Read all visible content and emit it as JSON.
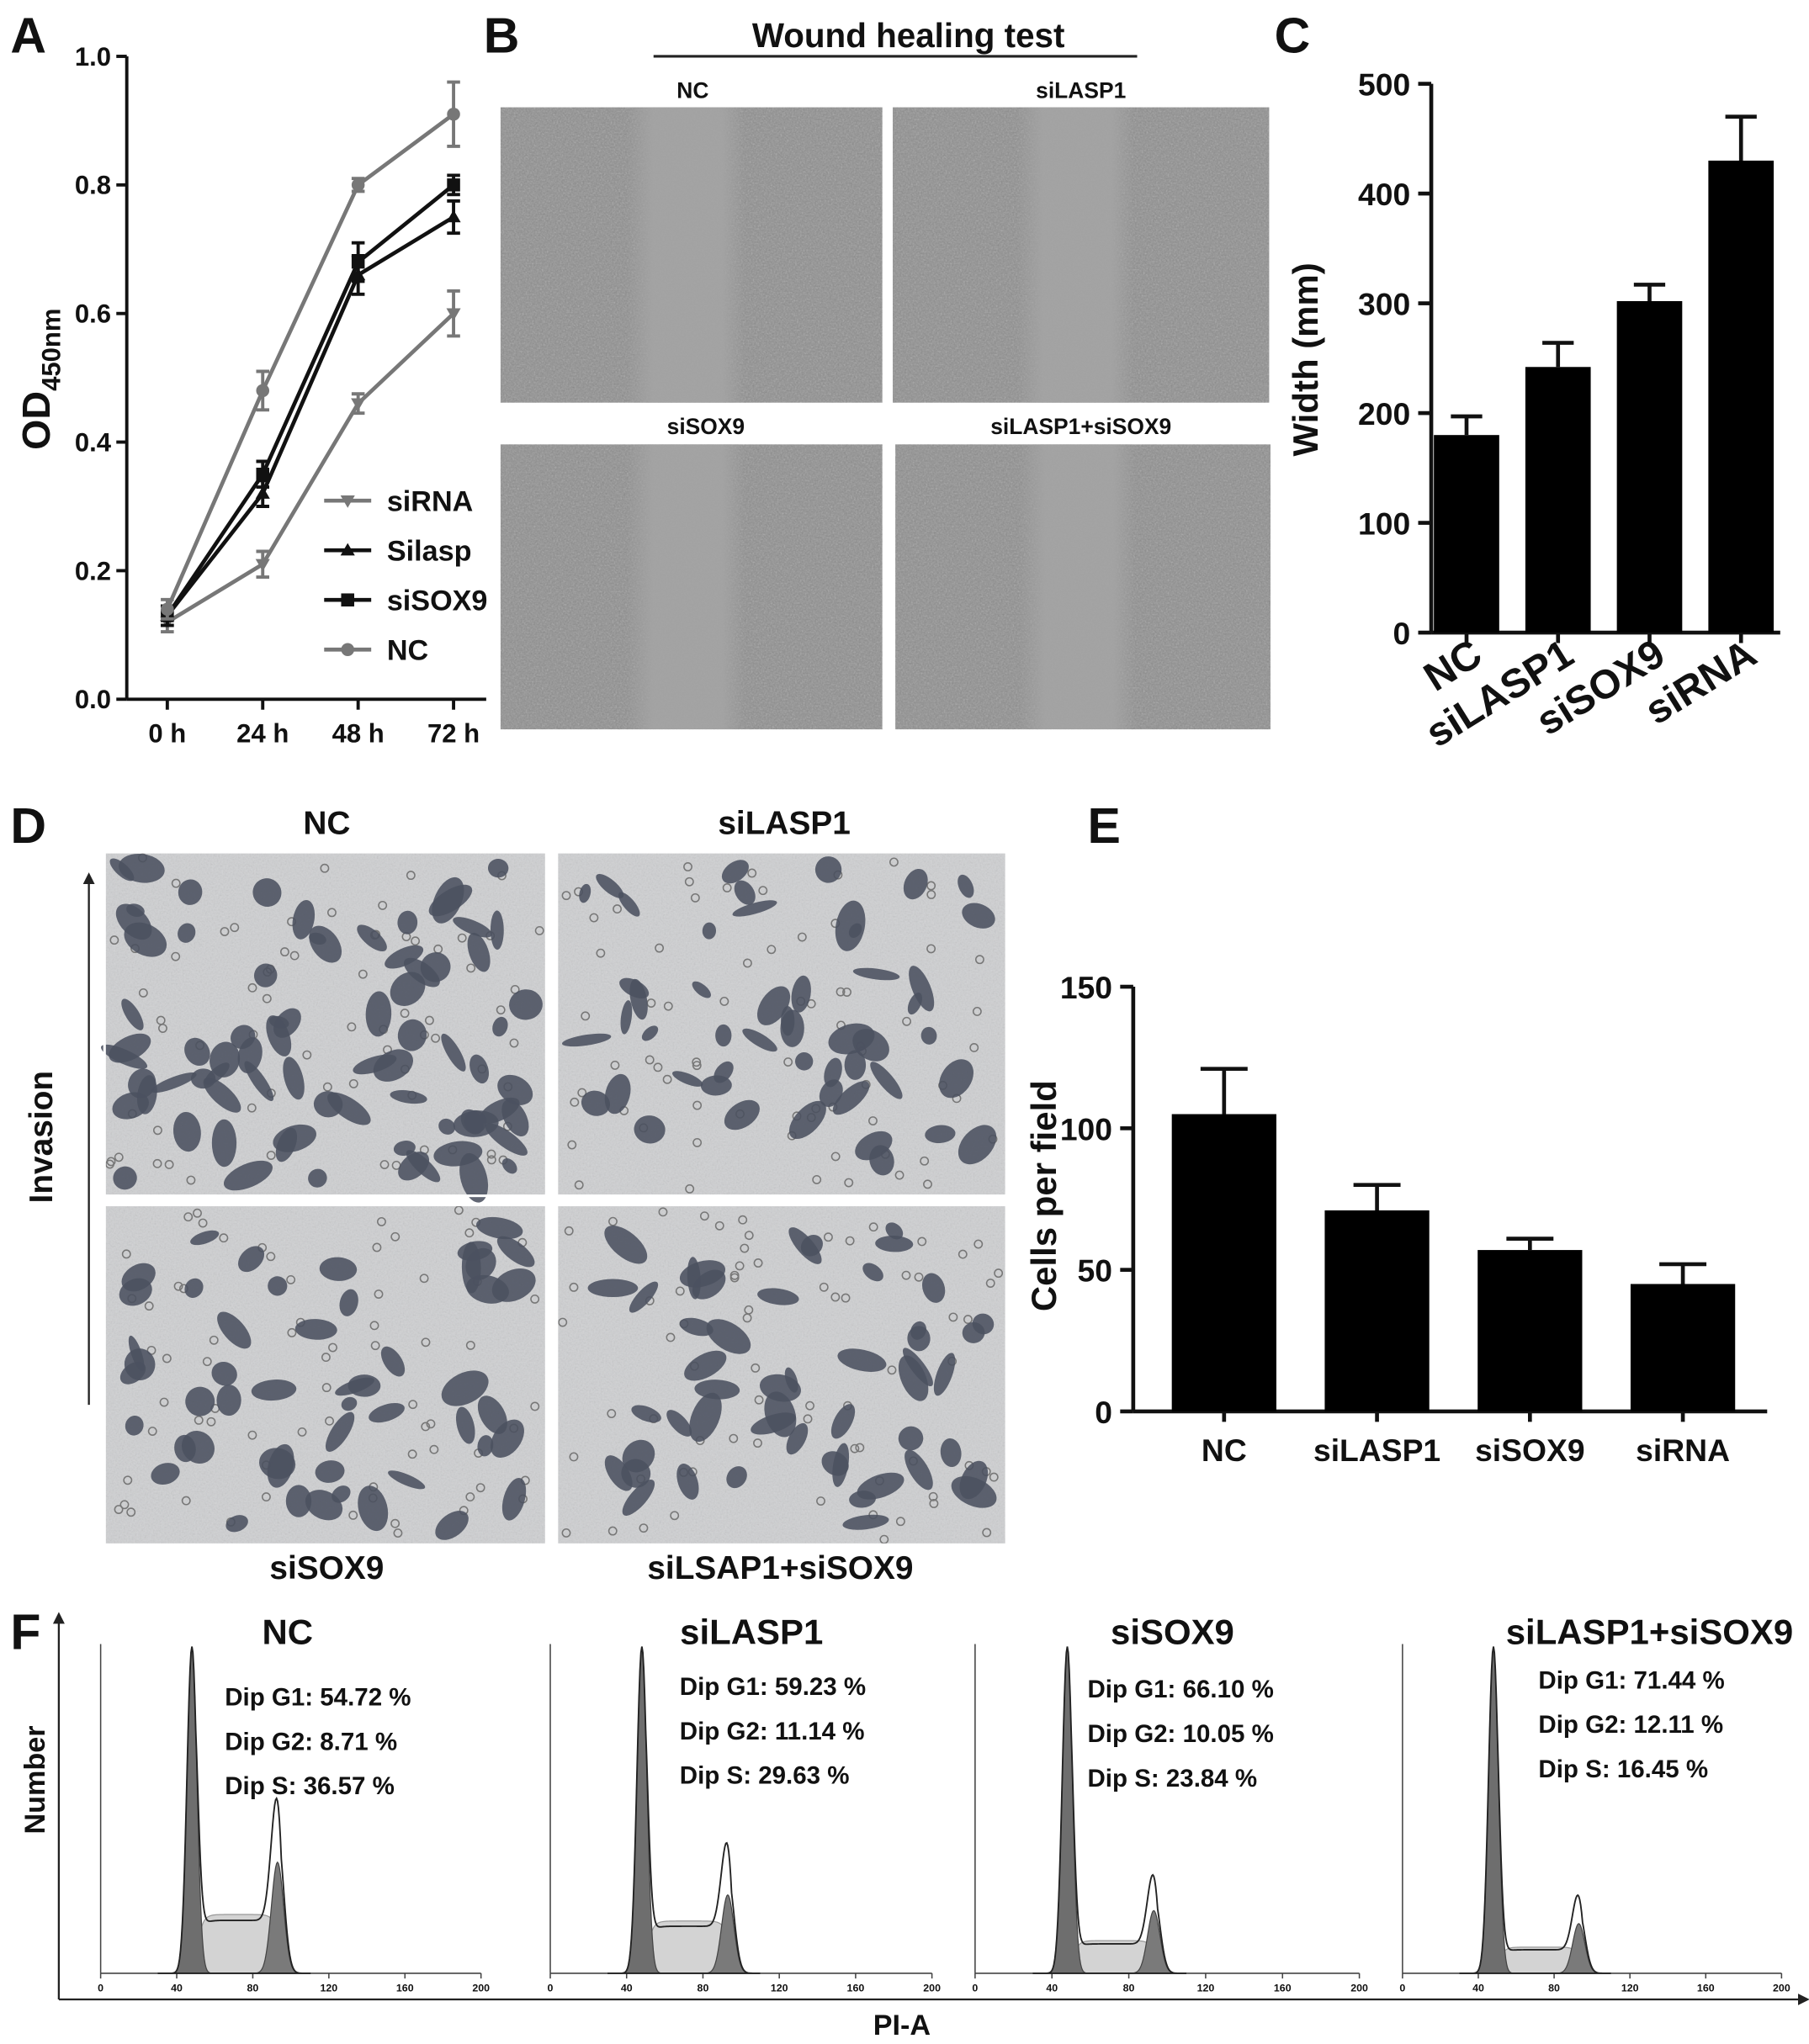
{
  "panel_labels": [
    "A",
    "B",
    "C",
    "D",
    "E",
    "F"
  ],
  "chart_data": [
    {
      "type": "line",
      "y_label": "OD",
      "y_label_sub": "450nm",
      "categories": [
        "0 h",
        "24 h",
        "48 h",
        "72 h"
      ],
      "ylim": [
        0,
        1
      ],
      "yticks": [
        {
          "value": 0,
          "label": "0.0"
        },
        0.2,
        0.4,
        0.6,
        0.8,
        {
          "value": 1,
          "label": "1.0"
        }
      ],
      "series": [
        {
          "name": "siRNA",
          "color": "#777777",
          "marker": "triangle-down",
          "values": [
            0.12,
            0.21,
            0.46,
            0.6
          ],
          "errors": [
            0.015,
            0.02,
            0.015,
            0.035
          ]
        },
        {
          "name": "Silasp",
          "color": "#111111",
          "marker": "triangle-up",
          "values": [
            0.13,
            0.32,
            0.66,
            0.75
          ],
          "errors": [
            0.015,
            0.02,
            0.03,
            0.025
          ]
        },
        {
          "name": "siSOX9",
          "color": "#111111",
          "marker": "square",
          "values": [
            0.13,
            0.35,
            0.68,
            0.8
          ],
          "errors": [
            0.015,
            0.02,
            0.03,
            0.015
          ]
        },
        {
          "name": "NC",
          "color": "#777777",
          "marker": "circle",
          "values": [
            0.14,
            0.48,
            0.8,
            0.91
          ],
          "errors": [
            0.015,
            0.03,
            0.01,
            0.05
          ]
        }
      ]
    },
    {
      "type": "bar",
      "y_label": "Width (mm)",
      "color": "#000000",
      "categories": [
        "NC",
        "siLASP1",
        "siSOX9",
        "siRNA"
      ],
      "values": [
        180,
        242,
        302,
        430
      ],
      "errors": [
        17,
        22,
        15,
        40
      ],
      "ylim": [
        0,
        500
      ],
      "yticks": [
        0,
        100,
        200,
        300,
        400,
        500
      ]
    },
    {
      "type": "bar",
      "y_label": "Cells per field",
      "color": "#000000",
      "categories": [
        "NC",
        "siLASP1",
        "siSOX9",
        "siRNA"
      ],
      "values": [
        105,
        71,
        57,
        45
      ],
      "errors": [
        16,
        9,
        4,
        7
      ],
      "ylim": [
        0,
        150
      ],
      "yticks": [
        0,
        50,
        100,
        150
      ]
    }
  ],
  "wound_healing": {
    "title": "Wound healing test",
    "labels": [
      "NC",
      "siLASP1",
      "siSOX9",
      "siLASP1+siSOX9"
    ]
  },
  "invasion": {
    "axis_label": "Invasion",
    "labels": [
      "NC",
      "siLASP1",
      "siSOX9",
      "siLSAP1+siSOX9"
    ]
  },
  "cell_cycle": {
    "x_label": "PI-A",
    "y_label": "Number",
    "xlim": [
      0,
      200
    ],
    "xticks": [
      0,
      40,
      80,
      120,
      160,
      200
    ],
    "panels": [
      {
        "title": "NC",
        "stats": [
          "Dip G1: 54.72 %",
          "Dip G2: 8.71 %",
          "Dip S: 36.57 %"
        ]
      },
      {
        "title": "siLASP1",
        "stats": [
          "Dip G1: 59.23 %",
          "Dip G2: 11.14 %",
          "Dip S: 29.63 %"
        ]
      },
      {
        "title": "siSOX9",
        "stats": [
          "Dip G1: 66.10 %",
          "Dip G2: 10.05 %",
          "Dip S: 23.84 %"
        ]
      },
      {
        "title": "siLASP1+siSOX9",
        "stats": [
          "Dip G1: 71.44 %",
          "Dip G2: 12.11 %",
          "Dip S: 16.45 %"
        ]
      }
    ]
  }
}
